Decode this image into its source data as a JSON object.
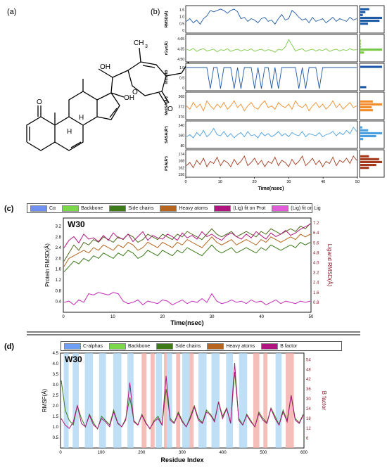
{
  "panels": {
    "a": {
      "label": "(a)"
    },
    "b": {
      "label": "(b)"
    },
    "c": {
      "label": "(c)"
    },
    "d": {
      "label": "(d)"
    }
  },
  "molecule": {
    "atoms": {
      "o_ketone": "O",
      "h_1": "H",
      "h_2": "H",
      "oh_1": "OH",
      "oh_2": "OH",
      "oh_3": "OH",
      "ch3": "CH",
      "ch3_sub": "3",
      "o_ring": "O",
      "o_lactone": "O"
    }
  },
  "chart_data": [
    {
      "id": "b",
      "type": "line",
      "xlabel": "Time(nsec)",
      "xlim": [
        0,
        50
      ],
      "x_ticks": [
        "0",
        "10",
        "20",
        "30",
        "40",
        "50"
      ],
      "subplots": [
        {
          "ylabel": "RMSD(Å)",
          "color": "#1f5aa6",
          "y_ticks": [
            "1.5",
            "1.0",
            "0.5",
            "0"
          ],
          "ylim": [
            0,
            1.7
          ],
          "values": [
            0.7,
            0.9,
            0.6,
            0.8,
            0.5,
            0.9,
            1.1,
            1.5,
            1.4,
            1.5,
            1.6,
            1.5,
            1.3,
            1.5,
            1.6,
            1.4,
            0.9,
            1.0,
            0.7,
            0.9,
            0.8,
            0.6,
            0.9,
            1.0,
            0.7,
            0.8,
            0.5,
            0.9,
            1.2,
            0.8,
            0.9,
            1.5,
            1.3,
            1.0,
            0.8,
            0.9,
            0.6,
            1.0,
            0.7,
            0.8,
            0.9,
            0.6,
            0.8,
            1.0,
            0.7,
            0.9,
            0.8,
            0.7,
            1.0,
            0.8,
            0.9
          ]
        },
        {
          "ylabel": "rGyr(Å)",
          "color": "#7ac943",
          "y_ticks": [
            "4.65",
            "4.35",
            "4.50"
          ],
          "ylim": [
            4.2,
            4.75
          ],
          "values": [
            4.45,
            4.42,
            4.47,
            4.4,
            4.44,
            4.46,
            4.41,
            4.43,
            4.45,
            4.39,
            4.44,
            4.42,
            4.46,
            4.4,
            4.43,
            4.45,
            4.41,
            4.44,
            4.42,
            4.46,
            4.4,
            4.43,
            4.45,
            4.41,
            4.44,
            4.42,
            4.38,
            4.45,
            4.43,
            4.5,
            4.68,
            4.55,
            4.41,
            4.44,
            4.46,
            4.4,
            4.43,
            4.45,
            4.41,
            4.44,
            4.42,
            4.46,
            4.4,
            4.43,
            4.45,
            4.41,
            4.44,
            4.42,
            4.46,
            4.43,
            4.44
          ]
        },
        {
          "ylabel": "intraHB",
          "color": "#1f5aa6",
          "y_ticks": [
            "1.0",
            "0.5",
            "0"
          ],
          "ylim": [
            0,
            1.1
          ],
          "values": [
            1,
            1,
            1,
            1,
            1,
            1,
            1,
            0,
            1,
            1,
            0,
            1,
            1,
            1,
            0,
            1,
            0,
            1,
            1,
            1,
            0,
            1,
            0,
            1,
            1,
            0,
            1,
            0,
            1,
            1,
            1,
            1,
            1,
            0,
            1,
            0,
            1,
            1,
            1,
            0,
            1,
            1,
            1,
            1,
            1,
            1,
            1,
            1,
            1,
            1,
            1
          ]
        },
        {
          "ylabel": "MolSA(Å²)",
          "color": "#f28c28",
          "y_ticks": [
            "368",
            "372",
            "376"
          ],
          "ylim": [
            364,
            378
          ],
          "values": [
            371,
            369,
            373,
            370,
            372,
            368,
            374,
            371,
            369,
            372,
            370,
            373,
            369,
            371,
            374,
            370,
            372,
            368,
            371,
            373,
            370,
            369,
            372,
            374,
            370,
            371,
            369,
            373,
            371,
            370,
            372,
            369,
            374,
            371,
            370,
            372,
            368,
            371,
            373,
            370,
            372,
            369,
            371,
            374,
            370,
            372,
            369,
            371,
            373,
            370,
            371
          ]
        },
        {
          "ylabel": "SASA(Å²)",
          "color": "#4a9fe0",
          "y_ticks": [
            "240",
            "160",
            "80"
          ],
          "ylim": [
            60,
            280
          ],
          "values": [
            150,
            170,
            140,
            190,
            160,
            210,
            150,
            180,
            230,
            170,
            160,
            200,
            150,
            180,
            140,
            170,
            190,
            150,
            200,
            160,
            170,
            140,
            190,
            160,
            180,
            150,
            170,
            200,
            160,
            180,
            150,
            190,
            170,
            160,
            200,
            150,
            180,
            170,
            160,
            190,
            150,
            170,
            180,
            200,
            160,
            190,
            170,
            210,
            180,
            240,
            200
          ]
        },
        {
          "ylabel": "PSA(Å²)",
          "color": "#a33a1c",
          "y_ticks": [
            "174",
            "168",
            "162",
            "156"
          ],
          "ylim": [
            154,
            176
          ],
          "values": [
            163,
            166,
            161,
            168,
            164,
            170,
            162,
            167,
            165,
            171,
            163,
            168,
            166,
            162,
            169,
            164,
            167,
            172,
            163,
            166,
            170,
            164,
            168,
            162,
            167,
            165,
            171,
            163,
            168,
            166,
            162,
            169,
            164,
            167,
            172,
            163,
            166,
            170,
            164,
            168,
            162,
            167,
            165,
            171,
            163,
            168,
            166,
            170,
            165,
            172,
            168
          ]
        }
      ]
    },
    {
      "id": "c",
      "type": "line",
      "title": "W30",
      "xlabel": "Time(nsec)",
      "ylabel": "Protein RMSD(Å)",
      "ylabel_right": "Ligand RMSD(Å)",
      "xlim": [
        0,
        50
      ],
      "ylim": [
        0,
        3.5
      ],
      "ylim_right": [
        0,
        7.6
      ],
      "x_ticks": [
        "0",
        "10",
        "20",
        "30",
        "40",
        "50"
      ],
      "y_ticks": [
        "0.4",
        "0.8",
        "1.2",
        "1.6",
        "2.0",
        "2.4",
        "2.8",
        "3.2"
      ],
      "y_ticks_right": [
        "0.8",
        "1.6",
        "2.4",
        "3.2",
        "4.0",
        "4.8",
        "5.6",
        "6.4",
        "7.2"
      ],
      "legend": [
        {
          "name": "Cα",
          "color": "#6f8ff2"
        },
        {
          "name": "Backbone",
          "color": "#7ad84a"
        },
        {
          "name": "Side chains",
          "color": "#3c7a1a"
        },
        {
          "name": "Heavy atoms",
          "color": "#b5651d"
        },
        {
          "name": "(Lig) fit on Prot",
          "color": "#b0157f"
        },
        {
          "name": "(Lig) fit on Lig",
          "color": "#e25bd6"
        }
      ],
      "series": [
        {
          "name": "Backbone",
          "color": "#4c6b1a",
          "values": [
            1.9,
            2.2,
            2.5,
            2.3,
            2.6,
            2.5,
            2.7,
            2.6,
            2.8,
            2.7,
            2.6,
            2.8,
            2.7,
            2.9,
            2.8,
            2.6,
            2.7,
            2.9,
            2.8,
            2.7,
            2.9,
            2.8,
            2.7,
            2.9,
            2.8,
            3.0,
            2.9,
            2.8,
            2.7,
            2.9,
            3.1,
            2.9,
            2.8,
            2.9,
            3.0,
            2.8,
            2.9,
            3.0,
            2.9,
            2.8,
            3.0,
            2.9,
            3.1,
            3.0,
            2.9,
            3.0,
            3.1,
            3.0,
            3.2,
            3.1,
            3.3
          ]
        },
        {
          "name": "Heavy atoms",
          "color": "#b5651d",
          "values": [
            1.7,
            2.0,
            2.1,
            2.2,
            2.3,
            2.2,
            2.4,
            2.3,
            2.5,
            2.4,
            2.3,
            2.5,
            2.4,
            2.6,
            2.5,
            2.3,
            2.4,
            2.6,
            2.5,
            2.4,
            2.6,
            2.5,
            2.4,
            2.6,
            2.5,
            2.7,
            2.6,
            2.5,
            2.4,
            2.6,
            2.8,
            2.6,
            2.5,
            2.6,
            2.7,
            2.5,
            2.6,
            2.7,
            2.6,
            2.5,
            2.7,
            2.6,
            2.8,
            2.7,
            2.6,
            2.7,
            2.8,
            2.7,
            2.9,
            2.8,
            2.9
          ]
        },
        {
          "name": "Side chains",
          "color": "#3c7a1a",
          "values": [
            1.5,
            1.7,
            1.9,
            1.8,
            2.0,
            1.9,
            2.1,
            2.0,
            2.2,
            2.1,
            2.0,
            2.2,
            2.1,
            2.3,
            2.2,
            2.0,
            2.1,
            2.3,
            2.2,
            2.1,
            2.3,
            2.2,
            2.1,
            2.3,
            2.2,
            2.4,
            2.3,
            2.2,
            2.1,
            2.3,
            2.5,
            2.3,
            2.2,
            2.3,
            2.4,
            2.2,
            2.3,
            2.4,
            2.3,
            2.2,
            2.4,
            2.3,
            2.5,
            2.4,
            2.3,
            2.4,
            2.5,
            2.4,
            2.6,
            2.5,
            2.6
          ]
        },
        {
          "name": "(Lig) fit on Prot",
          "color": "#b0157f",
          "axis": "right",
          "values": [
            5.2,
            5.8,
            6.1,
            5.6,
            6.3,
            5.9,
            6.0,
            5.7,
            6.2,
            5.8,
            6.4,
            6.0,
            5.9,
            6.3,
            5.7,
            6.1,
            6.5,
            5.8,
            6.2,
            6.0,
            5.9,
            6.3,
            6.1,
            5.8,
            6.4,
            6.0,
            6.2,
            5.9,
            6.5,
            6.1,
            6.3,
            6.0,
            5.8,
            6.2,
            6.4,
            6.1,
            5.9,
            6.3,
            6.0,
            6.5,
            6.2,
            5.9,
            6.4,
            6.1,
            6.3,
            6.6,
            6.2,
            6.4,
            6.7,
            6.9,
            7.1
          ]
        },
        {
          "name": "(Lig) fit on Lig",
          "color": "#c22bb7",
          "axis": "right",
          "values": [
            0.8,
            0.9,
            0.6,
            1.0,
            0.8,
            1.5,
            1.4,
            1.6,
            1.5,
            1.4,
            1.6,
            1.5,
            0.9,
            0.7,
            0.8,
            1.0,
            0.6,
            0.9,
            0.8,
            0.7,
            1.0,
            0.9,
            0.6,
            0.8,
            1.0,
            0.7,
            0.9,
            0.8,
            1.1,
            0.8,
            1.5,
            0.9,
            0.7,
            0.8,
            1.0,
            0.8,
            0.9,
            0.7,
            1.0,
            0.8,
            0.9,
            0.6,
            0.8,
            1.0,
            0.7,
            0.9,
            0.8,
            0.7,
            0.9,
            0.8,
            0.9
          ]
        }
      ]
    },
    {
      "id": "d",
      "type": "line",
      "title": "W30",
      "xlabel": "Residue Index",
      "ylabel": "RMSF(Å)",
      "ylabel_right": "B factor",
      "xlim": [
        0,
        600
      ],
      "ylim": [
        0,
        4.5
      ],
      "ylim_right": [
        0,
        58
      ],
      "x_ticks": [
        "0",
        "100",
        "200",
        "300",
        "400",
        "500",
        "600"
      ],
      "y_ticks": [
        "0.5",
        "1.0",
        "1.5",
        "2.0",
        "2.5",
        "3.0",
        "3.5",
        "4.0",
        "4.5"
      ],
      "y_ticks_right": [
        "6",
        "12",
        "18",
        "24",
        "30",
        "36",
        "42",
        "48",
        "54"
      ],
      "legend": [
        {
          "name": "C-alphas",
          "color": "#6f9ff2"
        },
        {
          "name": "Backbone",
          "color": "#7ad84a"
        },
        {
          "name": "Side chains",
          "color": "#3c7a1a"
        },
        {
          "name": "Heavy atoms",
          "color": "#b5651d"
        },
        {
          "name": "B factor",
          "color": "#b0157f"
        }
      ],
      "helix_regions": [
        [
          8,
          20
        ],
        [
          30,
          45
        ],
        [
          60,
          80
        ],
        [
          95,
          112
        ],
        [
          130,
          150
        ],
        [
          165,
          180
        ],
        [
          235,
          250
        ],
        [
          262,
          275
        ],
        [
          300,
          318
        ],
        [
          340,
          360
        ],
        [
          372,
          392
        ],
        [
          408,
          425
        ],
        [
          440,
          460
        ],
        [
          530,
          545
        ]
      ],
      "strand_regions": [
        [
          200,
          212
        ],
        [
          222,
          232
        ],
        [
          255,
          262
        ],
        [
          285,
          295
        ],
        [
          318,
          328
        ],
        [
          475,
          490
        ],
        [
          500,
          510
        ],
        [
          555,
          575
        ]
      ],
      "series": [
        {
          "name": "Side chains",
          "color": "#3c7a1a",
          "values": [
            3.2,
            1.8,
            1.3,
            1.1,
            2.0,
            1.4,
            1.0,
            1.6,
            1.2,
            0.9,
            1.5,
            1.3,
            1.1,
            1.8,
            1.2,
            1.0,
            1.4,
            2.4,
            1.3,
            1.1,
            1.6,
            1.2,
            0.9,
            1.3,
            1.5,
            1.1,
            2.8,
            1.4,
            1.2,
            1.7,
            1.3,
            1.0,
            1.5,
            2.0,
            1.4,
            1.2,
            1.8,
            1.6,
            1.3,
            2.2,
            1.5,
            1.9,
            1.2,
            3.6,
            1.4,
            1.1,
            1.6,
            1.3,
            1.0,
            1.7,
            1.4,
            1.2,
            1.9,
            1.5,
            1.1,
            1.8,
            1.3,
            2.5,
            1.4,
            1.2,
            1.6
          ]
        },
        {
          "name": "B factor",
          "color": "#b0157f",
          "axis": "right",
          "values": [
            18,
            14,
            12,
            16,
            26,
            15,
            13,
            20,
            14,
            12,
            18,
            16,
            13,
            22,
            15,
            13,
            17,
            40,
            16,
            14,
            20,
            15,
            12,
            16,
            18,
            14,
            44,
            17,
            15,
            21,
            16,
            13,
            18,
            25,
            17,
            15,
            22,
            20,
            16,
            28,
            18,
            24,
            15,
            52,
            17,
            14,
            20,
            16,
            13,
            21,
            17,
            15,
            24,
            18,
            14,
            22,
            16,
            32,
            17,
            15,
            20
          ]
        }
      ]
    }
  ]
}
